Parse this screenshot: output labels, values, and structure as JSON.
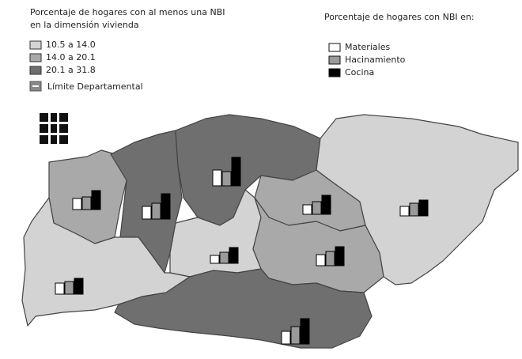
{
  "legend_left": {
    "title_lines": [
      "Porcentaje de hogares con al menos una NBI",
      "en la dimensión vivienda"
    ],
    "classes": [
      {
        "label": "10.5 a 14.0",
        "color": "#d3d3d3"
      },
      {
        "label": "14.0 a 20.1",
        "color": "#a9a9a9"
      },
      {
        "label": "20.1 a 31.8",
        "color": "#6f6f6f"
      }
    ],
    "boundary_label": "Límite Departamental"
  },
  "legend_right": {
    "title": "Porcentaje de hogares con NBI en:",
    "items": [
      {
        "label": "Materiales",
        "color": "#ffffff"
      },
      {
        "label": "Hacinamiento",
        "color": "#9a9a9a"
      },
      {
        "label": "Cocina",
        "color": "#000000"
      }
    ]
  },
  "regions": [
    {
      "class": 1,
      "bars": [
        14,
        16,
        24
      ]
    },
    {
      "class": 2,
      "bars": [
        16,
        20,
        32
      ]
    },
    {
      "class": 2,
      "bars": [
        20,
        18,
        36
      ]
    },
    {
      "class": 1,
      "bars": [
        12,
        16,
        24
      ]
    },
    {
      "class": 0,
      "bars": [
        12,
        16,
        20
      ]
    },
    {
      "class": 0,
      "bars": [
        10,
        14,
        20
      ]
    },
    {
      "class": 1,
      "bars": [
        14,
        18,
        24
      ]
    },
    {
      "class": 0,
      "bars": [
        14,
        16,
        20
      ]
    },
    {
      "class": 2,
      "bars": [
        16,
        22,
        32
      ]
    }
  ]
}
